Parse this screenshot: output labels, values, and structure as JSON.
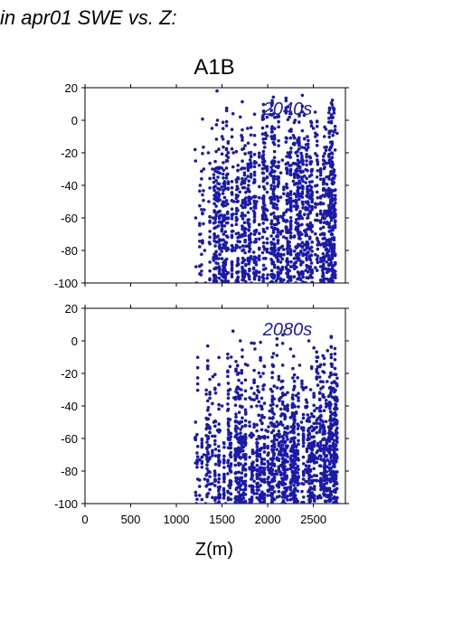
{
  "page": {
    "title": "in apr01 SWE vs. Z:"
  },
  "chart_data": {
    "type": "scatter",
    "title": "A1B",
    "xlabel": "Z(m)",
    "ylabel": "",
    "xlim": [
      0,
      2850
    ],
    "ylim": [
      -100,
      20
    ],
    "x_ticks": [
      0,
      500,
      1000,
      1500,
      2000,
      2500
    ],
    "y_ticks": [
      -100,
      -80,
      -60,
      -40,
      -20,
      0,
      20
    ],
    "grid": false,
    "color": "#1a1aaa",
    "panels": [
      {
        "label": "2040s",
        "approx_x_range": [
          1200,
          2760
        ],
        "approx_y_range": [
          -100,
          18
        ],
        "points": [
          [
            1205,
            -18
          ],
          [
            1210,
            -25
          ],
          [
            1212,
            -60
          ],
          [
            1215,
            -90
          ],
          [
            1220,
            -100
          ],
          [
            1260,
            -40
          ],
          [
            1265,
            -70
          ],
          [
            1270,
            -95
          ],
          [
            1300,
            -30
          ],
          [
            1305,
            -55
          ],
          [
            1310,
            -80
          ],
          [
            1320,
            -100
          ],
          [
            1350,
            -20
          ],
          [
            1355,
            -50
          ],
          [
            1360,
            -75
          ],
          [
            1365,
            -98
          ],
          [
            1390,
            -5
          ],
          [
            1395,
            -30
          ],
          [
            1400,
            -60
          ],
          [
            1405,
            -85
          ],
          [
            1410,
            -100
          ],
          [
            1445,
            18
          ],
          [
            1450,
            0
          ],
          [
            1455,
            -35
          ],
          [
            1460,
            -65
          ],
          [
            1470,
            -90
          ],
          [
            1500,
            -10
          ],
          [
            1510,
            -45
          ],
          [
            1520,
            -78
          ],
          [
            1530,
            -100
          ],
          [
            1560,
            -25
          ],
          [
            1570,
            -60
          ],
          [
            1620,
            4
          ],
          [
            1625,
            -20
          ],
          [
            1630,
            -50
          ],
          [
            1640,
            -80
          ],
          [
            1650,
            -100
          ],
          [
            1700,
            2
          ],
          [
            1710,
            -30
          ],
          [
            1720,
            -65
          ],
          [
            1730,
            -95
          ],
          [
            1780,
            -5
          ],
          [
            1790,
            -40
          ],
          [
            1800,
            -72
          ],
          [
            1820,
            -100
          ],
          [
            1860,
            -15
          ],
          [
            1880,
            -50
          ],
          [
            1900,
            -85
          ],
          [
            1950,
            3
          ],
          [
            1960,
            -25
          ],
          [
            1980,
            -60
          ],
          [
            2000,
            -95
          ],
          [
            2040,
            -10
          ],
          [
            2060,
            -45
          ],
          [
            2080,
            -80
          ],
          [
            2100,
            2
          ],
          [
            2120,
            -35
          ],
          [
            2140,
            -70
          ],
          [
            2160,
            -100
          ],
          [
            2200,
            5
          ],
          [
            2220,
            -20
          ],
          [
            2240,
            -55
          ],
          [
            2260,
            -90
          ],
          [
            2300,
            0
          ],
          [
            2320,
            -30
          ],
          [
            2340,
            -65
          ],
          [
            2360,
            -98
          ],
          [
            2400,
            3
          ],
          [
            2420,
            -15
          ],
          [
            2440,
            -50
          ],
          [
            2460,
            -85
          ],
          [
            2500,
            -5
          ],
          [
            2520,
            5
          ],
          [
            2540,
            -40
          ],
          [
            2560,
            -75
          ],
          [
            2580,
            -100
          ],
          [
            2620,
            -10
          ],
          [
            2640,
            -45
          ],
          [
            2660,
            -80
          ],
          [
            2700,
            -20
          ],
          [
            2720,
            -60
          ],
          [
            2740,
            -95
          ],
          [
            2760,
            -8
          ]
        ]
      },
      {
        "label": "2080s",
        "approx_x_range": [
          1200,
          2760
        ],
        "approx_y_range": [
          -100,
          6
        ],
        "points": [
          [
            1205,
            -60
          ],
          [
            1210,
            -75
          ],
          [
            1215,
            -95
          ],
          [
            1220,
            -100
          ],
          [
            1300,
            -70
          ],
          [
            1310,
            -85
          ],
          [
            1320,
            -100
          ],
          [
            1350,
            -48
          ],
          [
            1360,
            -65
          ],
          [
            1370,
            -88
          ],
          [
            1400,
            -22
          ],
          [
            1410,
            -50
          ],
          [
            1420,
            -80
          ],
          [
            1430,
            -100
          ],
          [
            1450,
            -55
          ],
          [
            1460,
            -90
          ],
          [
            1500,
            -40
          ],
          [
            1520,
            -75
          ],
          [
            1540,
            -100
          ],
          [
            1600,
            -10
          ],
          [
            1620,
            6
          ],
          [
            1630,
            -35
          ],
          [
            1640,
            -70
          ],
          [
            1650,
            -100
          ],
          [
            1700,
            0
          ],
          [
            1710,
            -30
          ],
          [
            1720,
            -65
          ],
          [
            1730,
            -95
          ],
          [
            1780,
            -15
          ],
          [
            1800,
            -50
          ],
          [
            1820,
            -85
          ],
          [
            1860,
            -5
          ],
          [
            1880,
            -40
          ],
          [
            1900,
            -80
          ],
          [
            1950,
            -20
          ],
          [
            1980,
            -55
          ],
          [
            2000,
            -95
          ],
          [
            2050,
            -10
          ],
          [
            2070,
            -45
          ],
          [
            2090,
            -80
          ],
          [
            2150,
            -25
          ],
          [
            2170,
            -60
          ],
          [
            2190,
            -100
          ],
          [
            2250,
            -5
          ],
          [
            2270,
            -35
          ],
          [
            2290,
            -70
          ],
          [
            2310,
            -100
          ],
          [
            2350,
            -15
          ],
          [
            2370,
            -50
          ],
          [
            2390,
            -85
          ],
          [
            2450,
            0
          ],
          [
            2470,
            -30
          ],
          [
            2490,
            -65
          ],
          [
            2510,
            -95
          ],
          [
            2550,
            -20
          ],
          [
            2570,
            -55
          ],
          [
            2590,
            -90
          ],
          [
            2650,
            -25
          ],
          [
            2670,
            -60
          ],
          [
            2690,
            -95
          ],
          [
            2720,
            -35
          ],
          [
            2740,
            -70
          ],
          [
            2760,
            -100
          ]
        ]
      }
    ]
  }
}
